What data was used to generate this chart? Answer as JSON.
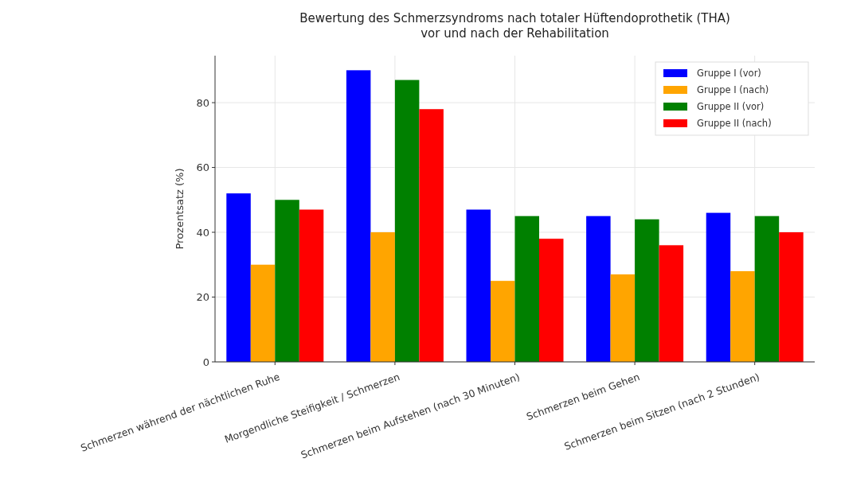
{
  "chart_data": {
    "type": "bar",
    "title": "Bewertung des Schmerzsyndroms nach totaler Hüftendoprothetik (THA)\nvor und nach der Rehabilitation",
    "ylabel": "Prozentsatz (%)",
    "categories": [
      "Schmerzen während der nächtlichen Ruhe",
      "Morgendliche Steifigkeit / Schmerzen",
      "Schmerzen beim Aufstehen (nach 30 Minuten)",
      "Schmerzen beim Gehen",
      "Schmerzen beim Sitzen (nach 2 Stunden)"
    ],
    "series": [
      {
        "name": "Gruppe I (vor)",
        "color": "#0000ff",
        "values": [
          52,
          90,
          47,
          45,
          46
        ]
      },
      {
        "name": "Gruppe I (nach)",
        "color": "#ffa500",
        "values": [
          30,
          40,
          25,
          27,
          28
        ]
      },
      {
        "name": "Gruppe II (vor)",
        "color": "#008000",
        "values": [
          50,
          87,
          45,
          44,
          45
        ]
      },
      {
        "name": "Gruppe II (nach)",
        "color": "#ff0000",
        "values": [
          47,
          78,
          38,
          36,
          40
        ]
      }
    ],
    "ylim": [
      0,
      94.5
    ],
    "yticks": [
      0,
      20,
      40,
      60,
      80
    ],
    "grid": true,
    "legend": "top right"
  }
}
